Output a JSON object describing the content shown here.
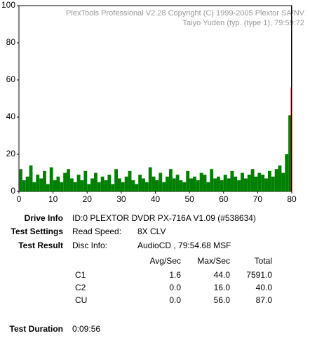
{
  "chart_data": {
    "type": "bar",
    "header_lines": [
      "PlexTools Professional V2.28 Copyright (C) 1999-2005 Plextor SA/NV",
      "Taiyo Yuden (typ. (type 1), 79:59:72"
    ],
    "xlim": [
      0,
      80
    ],
    "xticks": [
      0,
      10,
      20,
      30,
      40,
      50,
      60,
      70,
      80
    ],
    "ylim": [
      0,
      100
    ],
    "yticks": [
      0,
      20,
      40,
      60,
      80,
      100
    ],
    "end_line_x": 79.9,
    "series": [
      {
        "color": "#008000",
        "x": [
          0,
          1,
          2,
          3,
          4,
          5,
          6,
          7,
          8,
          9,
          10,
          11,
          12,
          13,
          14,
          15,
          16,
          17,
          18,
          19,
          20,
          21,
          22,
          23,
          24,
          25,
          26,
          27,
          28,
          29,
          30,
          31,
          32,
          33,
          34,
          35,
          36,
          37,
          38,
          39,
          40,
          41,
          42,
          43,
          44,
          45,
          46,
          47,
          48,
          49,
          50,
          51,
          52,
          53,
          54,
          55,
          56,
          57,
          58,
          59,
          60,
          61,
          62,
          63,
          64,
          65,
          66,
          67,
          68,
          69,
          70,
          71,
          72,
          73,
          74,
          75,
          76,
          77,
          78,
          79
        ],
        "values": [
          12,
          6,
          8,
          14,
          5,
          9,
          7,
          11,
          4,
          13,
          6,
          8,
          5,
          10,
          12,
          7,
          5,
          9,
          6,
          11,
          4,
          7,
          10,
          5,
          8,
          6,
          9,
          4,
          12,
          7,
          5,
          8,
          11,
          6,
          4,
          9,
          7,
          5,
          13,
          8,
          6,
          10,
          5,
          8,
          12,
          7,
          9,
          6,
          5,
          11,
          7,
          8,
          6,
          10,
          9,
          5,
          12,
          7,
          8,
          6,
          9,
          7,
          11,
          8,
          6,
          10,
          7,
          9,
          12,
          8,
          10,
          9,
          7,
          11,
          8,
          12,
          14,
          10,
          20,
          41
        ]
      },
      {
        "color": "#c00000",
        "x": [
          79.7
        ],
        "values": [
          56
        ]
      }
    ]
  },
  "report": {
    "rows": [
      {
        "label": "Drive Info",
        "text": "ID:0 PLEXTOR DVDR PX-716A V1.09 (#538634)"
      },
      {
        "label": "Test Settings",
        "key": "Read Speed:",
        "text": "8X CLV"
      },
      {
        "label": "Test Result",
        "key": "Disc Info:",
        "text": "AudioCD , 79:54.68 MSF"
      }
    ],
    "table": {
      "headers": [
        "Avg/Sec",
        "Max/Sec",
        "Total"
      ],
      "rows": [
        [
          "C1",
          "1.6",
          "44.0",
          "7591.0"
        ],
        [
          "C2",
          "0.0",
          "16.0",
          "40.0"
        ],
        [
          "CU",
          "0.0",
          "56.0",
          "87.0"
        ]
      ]
    },
    "duration_label": "Test Duration",
    "duration": "0:09:56"
  }
}
